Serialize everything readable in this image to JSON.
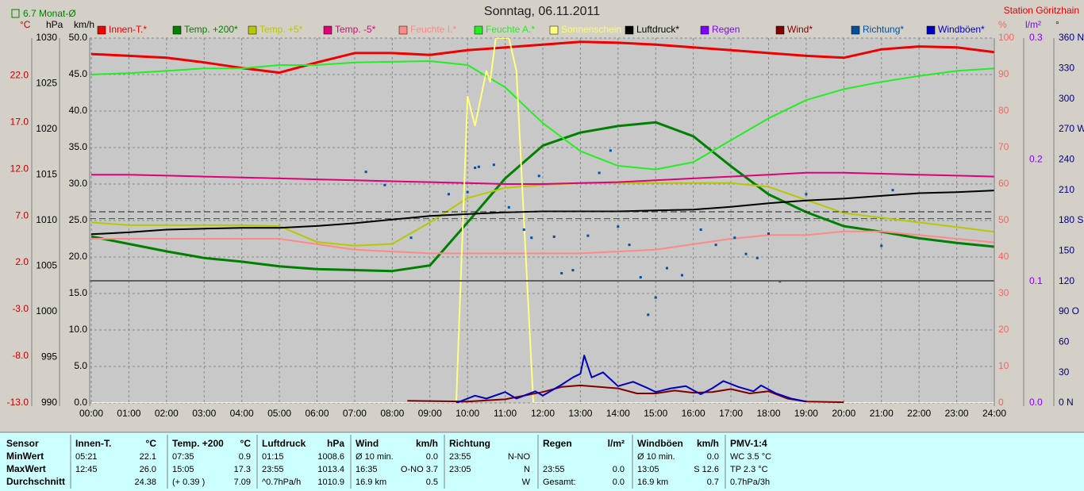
{
  "chart_data": {
    "type": "line",
    "title": "Sonntag, 06.11.2011",
    "station": "Station Göritzhain",
    "monthly_avg": {
      "value": 6.7,
      "label": "6.7 Monat-Ø",
      "color": "#008000",
      "axis": 0
    },
    "xlim": [
      0,
      24
    ],
    "xticks": [
      {
        "value": 0,
        "label": "00:00"
      },
      {
        "value": 1,
        "label": "01:00"
      },
      {
        "value": 2,
        "label": "02:00"
      },
      {
        "value": 3,
        "label": "03:00"
      },
      {
        "value": 4,
        "label": "04:00"
      },
      {
        "value": 5,
        "label": "05:00"
      },
      {
        "value": 6,
        "label": "06:00"
      },
      {
        "value": 7,
        "label": "07:00"
      },
      {
        "value": 8,
        "label": "08:00"
      },
      {
        "value": 9,
        "label": "09:00"
      },
      {
        "value": 10,
        "label": "10:00"
      },
      {
        "value": 11,
        "label": "11:00"
      },
      {
        "value": 12,
        "label": "12:00"
      },
      {
        "value": 13,
        "label": "13:00"
      },
      {
        "value": 14,
        "label": "14:00"
      },
      {
        "value": 15,
        "label": "15:00"
      },
      {
        "value": 16,
        "label": "16:00"
      },
      {
        "value": 17,
        "label": "17:00"
      },
      {
        "value": 18,
        "label": "18:00"
      },
      {
        "value": 19,
        "label": "19:00"
      },
      {
        "value": 20,
        "label": "20:00"
      },
      {
        "value": 21,
        "label": "21:00"
      },
      {
        "value": 22,
        "label": "22:00"
      },
      {
        "value": 23,
        "label": "23:00"
      },
      {
        "value": 24,
        "label": "24:00"
      }
    ],
    "xgrid": true,
    "x": [
      0,
      1,
      2,
      3,
      4,
      5,
      6,
      7,
      8,
      9,
      10,
      11,
      12,
      13,
      14,
      15,
      16,
      17,
      18,
      19,
      20,
      21,
      22,
      23,
      24
    ],
    "axes": [
      {
        "unit": "°C",
        "color": "#c00000",
        "ylim": [
          -13,
          26
        ],
        "yticks": [
          {
            "value": -13,
            "label": "-13.0"
          },
          {
            "value": -8,
            "label": "-8.0"
          },
          {
            "value": -3,
            "label": "-3.0"
          },
          {
            "value": 2,
            "label": "2.0"
          },
          {
            "value": 7,
            "label": "7.0"
          },
          {
            "value": 12,
            "label": "12.0"
          },
          {
            "value": 17,
            "label": "17.0"
          },
          {
            "value": 22,
            "label": "22.0"
          }
        ]
      },
      {
        "unit": "hPa",
        "color": "#000000",
        "ylim": [
          990,
          1030
        ],
        "yticks": [
          990,
          995,
          1000,
          1005,
          1010,
          1015,
          1020,
          1025,
          1030
        ]
      },
      {
        "unit": "km/h",
        "color": "#000000",
        "grid": true,
        "ylim": [
          0,
          50
        ],
        "yticks": [
          {
            "value": 0,
            "label": "0.0"
          },
          {
            "value": 5,
            "label": "5.0"
          },
          {
            "value": 10,
            "label": "10.0"
          },
          {
            "value": 15,
            "label": "15.0"
          },
          {
            "value": 20,
            "label": "20.0"
          },
          {
            "value": 25,
            "label": "25.0"
          },
          {
            "value": 30,
            "label": "30.0"
          },
          {
            "value": 35,
            "label": "35.0"
          },
          {
            "value": 40,
            "label": "40.0"
          },
          {
            "value": 45,
            "label": "45.0"
          },
          {
            "value": 50,
            "label": "50.0"
          }
        ]
      },
      {
        "unit": "%",
        "color": "#ff6060",
        "ylim": [
          0,
          100
        ],
        "yticks": [
          0,
          10,
          20,
          30,
          40,
          50,
          60,
          70,
          80,
          90,
          100
        ]
      },
      {
        "unit": "l/m²",
        "color": "#8000ff",
        "ylim": [
          0,
          0.3
        ],
        "yticks": [
          {
            "value": 0,
            "label": "0.0"
          },
          0.1,
          0.2,
          0.3
        ]
      },
      {
        "unit": "°",
        "color": "#000080",
        "ylim": [
          0,
          360
        ],
        "yticks": [
          {
            "value": 0,
            "label": "0 N"
          },
          30,
          60,
          {
            "value": 90,
            "label": "90 O"
          },
          120,
          150,
          {
            "value": 180,
            "label": "180 S"
          },
          210,
          240,
          {
            "value": 270,
            "label": "270 W"
          },
          300,
          330,
          {
            "value": 360,
            "label": "360 N"
          }
        ]
      }
    ],
    "series": [
      {
        "name": "Innen-T.*",
        "color": "#ee0000",
        "axis": 0,
        "values": [
          24.3,
          24.1,
          23.9,
          23.4,
          22.8,
          22.3,
          23.4,
          24.4,
          24.4,
          24.2,
          24.7,
          25.0,
          25.3,
          25.6,
          25.5,
          25.3,
          25.0,
          24.7,
          24.4,
          24.1,
          23.9,
          24.8,
          25.1,
          25.0,
          24.5
        ]
      },
      {
        "name": "Temp. +200*",
        "color": "#008000",
        "axis": 0,
        "values": [
          4.8,
          4.0,
          3.2,
          2.5,
          2.1,
          1.6,
          1.3,
          1.2,
          1.1,
          1.7,
          6.3,
          11.0,
          14.5,
          15.9,
          16.6,
          17.0,
          15.5,
          12.3,
          9.3,
          7.4,
          5.9,
          5.3,
          4.6,
          4.1,
          3.7
        ]
      },
      {
        "name": "Temp. +5*",
        "color": "#b8c800",
        "axis": 0,
        "values": [
          6.3,
          6.0,
          6.0,
          6.0,
          6.0,
          5.9,
          4.2,
          3.8,
          4.0,
          6.3,
          8.9,
          10.0,
          10.3,
          10.5,
          10.5,
          10.5,
          10.5,
          10.5,
          10.1,
          8.7,
          7.3,
          6.8,
          6.3,
          5.8,
          5.3
        ]
      },
      {
        "name": "Temp. -5*",
        "color": "#e0007a",
        "axis": 0,
        "values": [
          11.4,
          11.4,
          11.3,
          11.2,
          11.1,
          11.0,
          10.9,
          10.8,
          10.7,
          10.6,
          10.5,
          10.4,
          10.4,
          10.5,
          10.6,
          10.8,
          11.0,
          11.2,
          11.4,
          11.6,
          11.6,
          11.5,
          11.4,
          11.3,
          11.2
        ]
      },
      {
        "name": "Feuchte I.*",
        "color": "#ff8888",
        "axis": 3,
        "values": [
          45,
          45,
          45,
          45,
          45,
          45,
          43.5,
          42,
          41.5,
          41,
          41,
          41,
          41,
          41,
          41.5,
          42,
          43.5,
          45,
          46,
          46,
          47,
          47,
          46,
          45,
          44
        ]
      },
      {
        "name": "Feuchte A.*",
        "color": "#22ee22",
        "axis": 3,
        "values": [
          90,
          90.4,
          91,
          91.7,
          91.7,
          92.6,
          92.6,
          93.3,
          93.5,
          93.7,
          92.6,
          86.5,
          76.7,
          69,
          65,
          64,
          66,
          72,
          78,
          83,
          86,
          88,
          89.6,
          91,
          91.7
        ]
      },
      {
        "name": "Sonnenschein",
        "color": "#ffff80",
        "axis": 3,
        "x": [
          0,
          9.7,
          10.0,
          10.2,
          10.5,
          10.6,
          10.75,
          11.1,
          11.3,
          11.45,
          11.75,
          24
        ],
        "values": [
          0,
          0,
          84,
          76,
          91,
          88,
          100,
          100,
          91,
          60,
          0,
          0
        ]
      },
      {
        "name": "Luftdruck*",
        "color": "#000000",
        "axis": 1,
        "values": [
          1008.5,
          1008.7,
          1009.0,
          1009.1,
          1009.2,
          1009.2,
          1009.4,
          1009.7,
          1010.1,
          1010.5,
          1010.7,
          1010.9,
          1011.0,
          1011.0,
          1011.0,
          1011.1,
          1011.2,
          1011.5,
          1011.9,
          1012.2,
          1012.4,
          1012.7,
          1013.0,
          1013.1,
          1013.3
        ]
      },
      {
        "name": "Regen",
        "color": "#8000ff",
        "axis": 4
      },
      {
        "name": "Wind*",
        "color": "#800000",
        "axis": 2,
        "x": [
          8.4,
          10,
          11,
          12,
          12.5,
          13,
          13.5,
          14,
          14.5,
          15,
          15.5,
          16,
          16.5,
          17,
          17.5,
          18,
          18.5,
          19,
          20
        ],
        "values": [
          0.3,
          0.2,
          0.5,
          1.5,
          2.2,
          2.4,
          2.2,
          2.0,
          1.3,
          1.3,
          1.7,
          1.4,
          1.5,
          1.9,
          1.3,
          1.6,
          0.6,
          0.2,
          0.1
        ]
      },
      {
        "name": "Richtung*",
        "color": "#0050a0",
        "axis": 5,
        "type": "scatter",
        "x": [
          7.3,
          7.8,
          8.5,
          9.5,
          10,
          10.2,
          10.3,
          10.7,
          11.1,
          11.5,
          11.7,
          11.9,
          12.3,
          12.5,
          12.8,
          13.2,
          13.5,
          13.8,
          14,
          14.3,
          14.6,
          14.8,
          15.0,
          15.3,
          15.7,
          16.2,
          16.6,
          17.1,
          17.4,
          17.7,
          18.0,
          18.3,
          19,
          21,
          21.3
        ],
        "values": [
          228,
          215,
          163,
          206,
          208,
          232,
          233,
          235,
          193,
          171,
          163,
          224,
          164,
          128,
          131,
          165,
          227,
          249,
          174,
          156,
          124,
          87,
          104,
          133,
          126,
          171,
          156,
          163,
          147,
          143,
          167,
          120,
          206,
          155,
          210
        ]
      },
      {
        "name": "Windböen*",
        "color": "#0000c0",
        "axis": 2,
        "x": [
          9.7,
          10.2,
          10.5,
          11,
          11.3,
          11.5,
          11.8,
          12,
          12.5,
          12.8,
          13.0,
          13.1,
          13.3,
          13.6,
          14,
          14.4,
          14.8,
          15,
          15.4,
          15.8,
          16.2,
          16.5,
          16.8,
          17.2,
          17.6,
          17.8,
          18.2,
          18.6,
          19
        ],
        "values": [
          0,
          1.0,
          0.6,
          1.5,
          0.6,
          1.0,
          1.6,
          1.0,
          2.5,
          3.5,
          4.0,
          6.5,
          3.5,
          4.2,
          2.3,
          2.9,
          2.0,
          1.5,
          2.0,
          2.3,
          1.2,
          2.0,
          3.0,
          2.2,
          1.6,
          2.4,
          1.3,
          0.6,
          0.2
        ]
      }
    ]
  },
  "summary": {
    "header": "Sensor",
    "row_labels": [
      "MinWert",
      "MaxWert",
      "Durchschnitt"
    ],
    "groups": [
      {
        "name": "Innen-T.",
        "unit": "°C",
        "rows": [
          {
            "left": "05:21",
            "right": "22.1"
          },
          {
            "left": "12:45",
            "right": "26.0"
          },
          {
            "right": "24.38"
          }
        ]
      },
      {
        "name": "Temp. +200",
        "unit": "°C",
        "rows": [
          {
            "left": "07:35",
            "right": "0.9"
          },
          {
            "left": "15:05",
            "right": "17.3"
          },
          {
            "left": "(+ 0.39 )",
            "right": "7.09"
          }
        ]
      },
      {
        "name": "Luftdruck",
        "unit": "hPa",
        "rows": [
          {
            "left": "01:15",
            "right": "1008.6"
          },
          {
            "left": "23:55",
            "right": "1013.4"
          },
          {
            "left": "^0.7hPa/h",
            "right": "1010.9"
          }
        ]
      },
      {
        "name": "Wind",
        "unit": "km/h",
        "rows": [
          {
            "left": "Ø 10 min.",
            "right": "0.0"
          },
          {
            "left": "16:35",
            "right": "O-NO 3.7"
          },
          {
            "left": "16.9 km",
            "right": "0.5"
          }
        ]
      },
      {
        "name": "Richtung",
        "rows": [
          {
            "left": "23:55",
            "right": "N-NO"
          },
          {
            "left": "23:05",
            "right": "N"
          },
          {
            "right": "W"
          }
        ]
      },
      {
        "name": "Regen",
        "unit": "l/m²",
        "rows": [
          null,
          {
            "left": "23:55",
            "right": "0.0"
          },
          {
            "left": "Gesamt:",
            "right": "0.0"
          }
        ]
      },
      {
        "name": "Windböen",
        "unit": "km/h",
        "rows": [
          {
            "left": "Ø 10 min.",
            "right": "0.0"
          },
          {
            "left": "13:05",
            "right": "S 12.6"
          },
          {
            "left": "16.9 km",
            "right": "0.7"
          }
        ]
      },
      {
        "name": "PMV-1:4",
        "rows": [
          {
            "left": "WC 3.5 °C"
          },
          {
            "left": "TP 2.3 °C"
          },
          {
            "left": "0.7hPa/3h"
          }
        ]
      }
    ]
  }
}
